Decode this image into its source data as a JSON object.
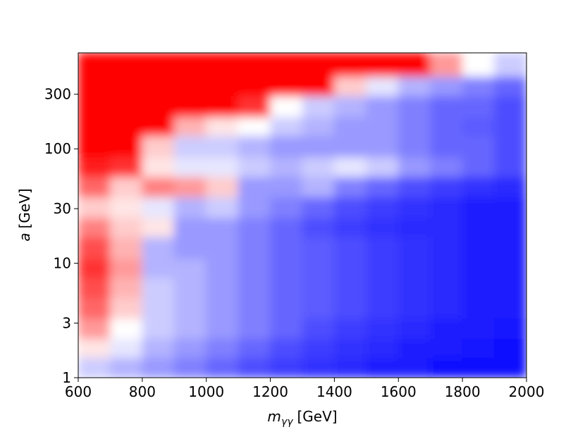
{
  "chart_data": {
    "type": "heatmap",
    "x_label_symbol": "m",
    "x_label_subscript": "γγ",
    "x_label_unit": "[GeV]",
    "y_label_symbol": "a",
    "y_label_unit": "[GeV]",
    "xlim": [
      600,
      2000
    ],
    "xticks": [
      600,
      800,
      1000,
      1200,
      1400,
      1600,
      1800,
      2000
    ],
    "ylim": [
      1,
      690
    ],
    "yticks": [
      1,
      3,
      10,
      30,
      100,
      300
    ],
    "y_log": true,
    "zlim": [
      0,
      1
    ],
    "colormap": [
      "#0000ff",
      "#ffffff",
      "#ff0000"
    ],
    "x_edges": [
      600,
      700,
      800,
      900,
      1000,
      1100,
      1200,
      1300,
      1400,
      1500,
      1600,
      1700,
      1800,
      1900,
      2000
    ],
    "y_edges": [
      1,
      1.5,
      2.2,
      3.3,
      5,
      7.5,
      11,
      17,
      25,
      38,
      57,
      85,
      130,
      190,
      290,
      430,
      690
    ],
    "z": [
      [
        0.4,
        0.35,
        0.3,
        0.25,
        0.2,
        0.15,
        0.12,
        0.1,
        0.08,
        0.05,
        0.05,
        0.03,
        0.02,
        0.02
      ],
      [
        0.55,
        0.45,
        0.35,
        0.3,
        0.25,
        0.2,
        0.15,
        0.12,
        0.1,
        0.08,
        0.06,
        0.05,
        0.04,
        0.03
      ],
      [
        0.7,
        0.5,
        0.4,
        0.35,
        0.3,
        0.25,
        0.2,
        0.15,
        0.12,
        0.1,
        0.08,
        0.06,
        0.05,
        0.04
      ],
      [
        0.8,
        0.6,
        0.4,
        0.35,
        0.3,
        0.25,
        0.2,
        0.18,
        0.15,
        0.12,
        0.1,
        0.08,
        0.06,
        0.05
      ],
      [
        0.85,
        0.65,
        0.4,
        0.35,
        0.3,
        0.25,
        0.2,
        0.18,
        0.15,
        0.12,
        0.1,
        0.08,
        0.06,
        0.05
      ],
      [
        0.9,
        0.7,
        0.35,
        0.35,
        0.3,
        0.25,
        0.2,
        0.18,
        0.15,
        0.12,
        0.1,
        0.08,
        0.06,
        0.05
      ],
      [
        0.85,
        0.65,
        0.35,
        0.3,
        0.3,
        0.25,
        0.2,
        0.18,
        0.15,
        0.12,
        0.1,
        0.08,
        0.06,
        0.05
      ],
      [
        0.75,
        0.6,
        0.55,
        0.3,
        0.3,
        0.25,
        0.2,
        0.15,
        0.12,
        0.1,
        0.08,
        0.08,
        0.06,
        0.05
      ],
      [
        0.6,
        0.55,
        0.45,
        0.35,
        0.4,
        0.3,
        0.25,
        0.2,
        0.15,
        0.12,
        0.1,
        0.08,
        0.06,
        0.05
      ],
      [
        0.8,
        0.6,
        0.75,
        0.7,
        0.6,
        0.3,
        0.3,
        0.35,
        0.25,
        0.2,
        0.15,
        0.12,
        0.1,
        0.08
      ],
      [
        0.95,
        0.9,
        0.55,
        0.45,
        0.45,
        0.4,
        0.35,
        0.4,
        0.45,
        0.4,
        0.3,
        0.25,
        0.2,
        0.15
      ],
      [
        1,
        1,
        0.6,
        0.4,
        0.4,
        0.35,
        0.3,
        0.3,
        0.3,
        0.3,
        0.25,
        0.2,
        0.2,
        0.15
      ],
      [
        1,
        1,
        1,
        0.65,
        0.55,
        0.5,
        0.4,
        0.35,
        0.3,
        0.3,
        0.25,
        0.2,
        0.18,
        0.15
      ],
      [
        1,
        1,
        1,
        1,
        1,
        0.9,
        0.5,
        0.4,
        0.35,
        0.3,
        0.25,
        0.2,
        0.2,
        0.15
      ],
      [
        1,
        1,
        1,
        1,
        1,
        1,
        1,
        1,
        0.6,
        0.45,
        0.35,
        0.3,
        0.25,
        0.2
      ],
      [
        1,
        1,
        1,
        1,
        1,
        1,
        1,
        1,
        1,
        1,
        1,
        0.7,
        0.5,
        0.4
      ]
    ]
  }
}
